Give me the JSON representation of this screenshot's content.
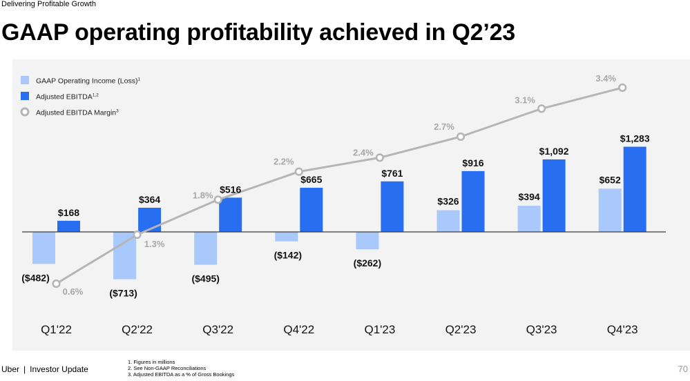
{
  "header": {
    "eyebrow": "Delivering Profitable Growth",
    "title": "GAAP operating profitability achieved in Q2’23"
  },
  "legend": [
    {
      "label": "GAAP Operating Income (Loss)",
      "sup": "1"
    },
    {
      "label": "Adjusted EBITDA",
      "sup": "1,2"
    },
    {
      "label": "Adjusted EBITDA Margin",
      "sup": "3"
    }
  ],
  "colors": {
    "gaap": "#a9c8fb",
    "ebitda": "#276ef1",
    "margin": "#b5b5b5",
    "panel": "#f3f3f3",
    "axis": "#3c3c3c"
  },
  "chart_data": {
    "type": "bar",
    "title": "GAAP operating profitability achieved in Q2’23",
    "unit": "USD millions",
    "categories": [
      "Q1'22",
      "Q2'22",
      "Q3'22",
      "Q4'22",
      "Q1'23",
      "Q2'23",
      "Q3'23",
      "Q4'23"
    ],
    "series": [
      {
        "name": "GAAP Operating Income (Loss)",
        "values": [
          -482,
          -713,
          -495,
          -142,
          -262,
          326,
          394,
          652
        ],
        "labels": [
          "($482)",
          "($713)",
          "($495)",
          "($142)",
          "($262)",
          "$326",
          "$394",
          "$652"
        ]
      },
      {
        "name": "Adjusted EBITDA",
        "values": [
          168,
          364,
          516,
          665,
          761,
          916,
          1092,
          1283
        ],
        "labels": [
          "$168",
          "$364",
          "$516",
          "$665",
          "$761",
          "$916",
          "$1,092",
          "$1,283"
        ]
      },
      {
        "name": "Adjusted EBITDA Margin",
        "type": "line",
        "values": [
          0.6,
          1.3,
          1.8,
          2.2,
          2.4,
          2.7,
          3.1,
          3.4
        ],
        "labels": [
          "0.6%",
          "1.3%",
          "1.8%",
          "2.2%",
          "2.4%",
          "2.7%",
          "3.1%",
          "3.4%"
        ]
      }
    ],
    "xlabel": "",
    "ylabel": "",
    "grid": false,
    "legend_position": "top-left"
  },
  "footer": {
    "brand": "Uber",
    "section": "Investor Update",
    "footnotes": [
      "1. Figures in millions",
      "2. See Non-GAAP Reconciliations",
      "3. Adjusted EBITDA as a % of Gross Bookings"
    ],
    "page_number": "70"
  }
}
